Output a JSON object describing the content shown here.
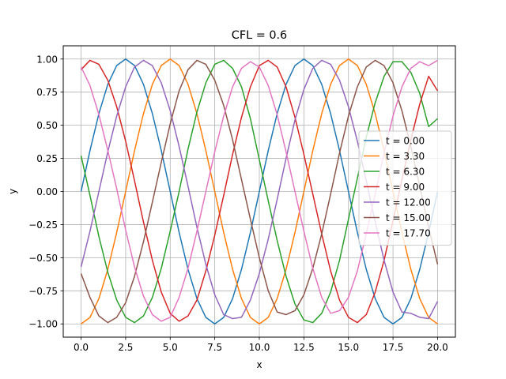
{
  "chart_data": {
    "type": "line",
    "title": "CFL = 0.6",
    "xlabel": "x",
    "ylabel": "y",
    "xlim": [
      -1.0,
      21.0
    ],
    "ylim": [
      -1.1,
      1.1
    ],
    "x_ticks": [
      0,
      2.5,
      5,
      7.5,
      10,
      12.5,
      15,
      17.5,
      20
    ],
    "x_tick_labels": [
      "0.0",
      "2.5",
      "5.0",
      "7.5",
      "10.0",
      "12.5",
      "15.0",
      "17.5",
      "20.0"
    ],
    "y_ticks": [
      -1.0,
      -0.75,
      -0.5,
      -0.25,
      0.0,
      0.25,
      0.5,
      0.75,
      1.0
    ],
    "y_tick_labels": [
      "−1.00",
      "−0.75",
      "−0.50",
      "−0.25",
      "0.00",
      "0.25",
      "0.50",
      "0.75",
      "1.00"
    ],
    "grid": true,
    "legend_position": "center-right",
    "x": [
      0.0,
      0.5,
      1.0,
      1.5,
      2.0,
      2.5,
      3.0,
      3.5,
      4.0,
      4.5,
      5.0,
      5.5,
      6.0,
      6.5,
      7.0,
      7.5,
      8.0,
      8.5,
      9.0,
      9.5,
      10.0,
      10.5,
      11.0,
      11.5,
      12.0,
      12.5,
      13.0,
      13.5,
      14.0,
      14.5,
      15.0,
      15.5,
      16.0,
      16.5,
      17.0,
      17.5,
      18.0,
      18.5,
      19.0,
      19.5,
      20.0
    ],
    "series": [
      {
        "name": "t = 0.00",
        "color": "#1f77b4",
        "values": [
          0.0,
          0.309,
          0.588,
          0.809,
          0.951,
          1.0,
          0.951,
          0.809,
          0.588,
          0.309,
          0.0,
          -0.309,
          -0.588,
          -0.809,
          -0.951,
          -1.0,
          -0.951,
          -0.809,
          -0.588,
          -0.309,
          0.0,
          0.309,
          0.588,
          0.809,
          0.951,
          1.0,
          0.951,
          0.809,
          0.588,
          0.309,
          0.0,
          -0.309,
          -0.588,
          -0.809,
          -0.951,
          -1.0,
          -0.951,
          -0.809,
          -0.588,
          -0.309,
          0.0
        ]
      },
      {
        "name": "t = 3.30",
        "color": "#ff7f0e",
        "values": [
          -1.0,
          -0.951,
          -0.809,
          -0.588,
          -0.309,
          0.0,
          0.309,
          0.588,
          0.809,
          0.951,
          1.0,
          0.951,
          0.809,
          0.588,
          0.309,
          0.0,
          -0.309,
          -0.588,
          -0.809,
          -0.951,
          -1.0,
          -0.951,
          -0.809,
          -0.588,
          -0.309,
          0.0,
          0.309,
          0.588,
          0.809,
          0.951,
          1.0,
          0.951,
          0.809,
          0.588,
          0.309,
          0.0,
          -0.309,
          -0.588,
          -0.809,
          -0.951,
          -1.0
        ]
      },
      {
        "name": "t = 6.30",
        "color": "#2ca02c",
        "values": [
          0.27,
          -0.03,
          -0.34,
          -0.61,
          -0.82,
          -0.95,
          -0.99,
          -0.94,
          -0.8,
          -0.58,
          -0.3,
          0.0,
          0.32,
          0.6,
          0.82,
          0.96,
          0.99,
          0.93,
          0.79,
          0.55,
          0.24,
          -0.07,
          -0.37,
          -0.64,
          -0.85,
          -0.97,
          -0.99,
          -0.92,
          -0.76,
          -0.52,
          -0.21,
          0.1,
          0.41,
          0.67,
          0.87,
          0.98,
          0.98,
          0.9,
          0.74,
          0.49,
          0.55
        ]
      },
      {
        "name": "t = 9.00",
        "color": "#d62728",
        "values": [
          0.92,
          0.99,
          0.96,
          0.84,
          0.64,
          0.38,
          0.08,
          -0.23,
          -0.52,
          -0.76,
          -0.92,
          -0.98,
          -0.94,
          -0.82,
          -0.6,
          -0.33,
          -0.03,
          0.28,
          0.56,
          0.79,
          0.95,
          0.99,
          0.94,
          0.79,
          0.56,
          0.28,
          -0.02,
          -0.32,
          -0.6,
          -0.82,
          -0.95,
          -0.99,
          -0.93,
          -0.76,
          -0.52,
          -0.22,
          0.09,
          0.39,
          0.66,
          0.87,
          0.76
        ]
      },
      {
        "name": "t = 12.00",
        "color": "#9467bd",
        "values": [
          -0.57,
          -0.3,
          0.0,
          0.3,
          0.57,
          0.79,
          0.94,
          0.99,
          0.95,
          0.82,
          0.61,
          0.34,
          0.04,
          -0.27,
          -0.55,
          -0.78,
          -0.93,
          -0.96,
          -0.95,
          -0.82,
          -0.62,
          -0.36,
          -0.06,
          0.25,
          0.54,
          0.77,
          0.93,
          0.99,
          0.96,
          0.84,
          0.64,
          0.38,
          0.08,
          -0.23,
          -0.52,
          -0.76,
          -0.91,
          -0.92,
          -0.95,
          -0.96,
          -0.83
        ]
      },
      {
        "name": "t = 15.00",
        "color": "#8c564b",
        "values": [
          -0.62,
          -0.8,
          -0.94,
          -0.99,
          -0.95,
          -0.84,
          -0.64,
          -0.38,
          -0.08,
          0.22,
          0.51,
          0.76,
          0.92,
          0.99,
          0.96,
          0.84,
          0.65,
          0.39,
          0.09,
          -0.21,
          -0.5,
          -0.75,
          -0.91,
          -0.93,
          -0.9,
          -0.78,
          -0.58,
          -0.32,
          -0.02,
          0.29,
          0.57,
          0.79,
          0.94,
          0.99,
          0.95,
          0.82,
          0.61,
          0.34,
          0.04,
          -0.27,
          -0.55
        ]
      },
      {
        "name": "t = 17.70",
        "color": "#e377c2",
        "values": [
          0.94,
          0.8,
          0.58,
          0.31,
          0.02,
          -0.29,
          -0.57,
          -0.79,
          -0.93,
          -0.98,
          -0.95,
          -0.8,
          -0.58,
          -0.3,
          0.0,
          0.3,
          0.57,
          0.79,
          0.93,
          0.98,
          0.94,
          0.8,
          0.58,
          0.3,
          0.0,
          -0.3,
          -0.58,
          -0.8,
          -0.92,
          -0.9,
          -0.8,
          -0.6,
          -0.32,
          -0.02,
          0.29,
          0.57,
          0.79,
          0.93,
          0.98,
          0.95,
          0.99
        ]
      }
    ]
  }
}
